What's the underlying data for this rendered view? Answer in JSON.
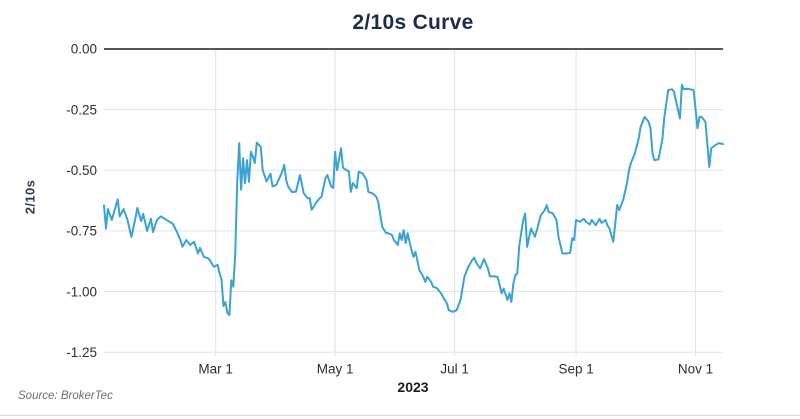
{
  "title": "2/10s Curve",
  "source": "Source: BrokerTec",
  "colors": {
    "line": "#3ba2d6",
    "grid": "#e3e3e3",
    "zero_line": "#55585c",
    "title_text": "#1e2b49",
    "tick_text": "#2f2f2f",
    "source_text": "#6f6f6f",
    "bottom_rule": "#d9d9d9"
  },
  "chart_data": {
    "type": "line",
    "title": "2/10s Curve",
    "xlabel": "2023",
    "ylabel": "2/10s",
    "ylim": [
      -1.25,
      0
    ],
    "grid": true,
    "legend": "none",
    "y_ticks": [
      0,
      -0.25,
      -0.5,
      -0.75,
      -1.0,
      -1.25
    ],
    "y_tick_labels": [
      "0.00",
      "-0.25",
      "-0.50",
      "-0.75",
      "-1.00",
      "-1.25"
    ],
    "x_domain_days_of_year": [
      2,
      318
    ],
    "x_ticks_days_of_year": [
      59,
      120,
      181,
      243,
      304
    ],
    "x_tick_labels": [
      "Mar 1",
      "May 1",
      "Jul 1",
      "Sep 1",
      "Nov 1"
    ],
    "series": [
      {
        "name": "2/10s",
        "x_unit": "day of year 2023",
        "y_unit": "percentage points",
        "points": [
          [
            2,
            -0.645
          ],
          [
            3,
            -0.74
          ],
          [
            4,
            -0.66
          ],
          [
            6,
            -0.705
          ],
          [
            9,
            -0.62
          ],
          [
            10,
            -0.69
          ],
          [
            12,
            -0.66
          ],
          [
            14,
            -0.705
          ],
          [
            16,
            -0.775
          ],
          [
            18,
            -0.7
          ],
          [
            19,
            -0.655
          ],
          [
            21,
            -0.71
          ],
          [
            22,
            -0.68
          ],
          [
            24,
            -0.75
          ],
          [
            26,
            -0.7
          ],
          [
            27,
            -0.755
          ],
          [
            29,
            -0.705
          ],
          [
            31,
            -0.69
          ],
          [
            33,
            -0.7
          ],
          [
            35,
            -0.71
          ],
          [
            37,
            -0.72
          ],
          [
            39,
            -0.75
          ],
          [
            41,
            -0.788
          ],
          [
            42,
            -0.815
          ],
          [
            44,
            -0.788
          ],
          [
            46,
            -0.808
          ],
          [
            48,
            -0.795
          ],
          [
            50,
            -0.843
          ],
          [
            51,
            -0.82
          ],
          [
            53,
            -0.857
          ],
          [
            55,
            -0.862
          ],
          [
            56,
            -0.87
          ],
          [
            58,
            -0.898
          ],
          [
            60,
            -0.89
          ],
          [
            61,
            -0.925
          ],
          [
            62,
            -0.95
          ],
          [
            63,
            -1.06
          ],
          [
            64,
            -1.043
          ],
          [
            65,
            -1.089
          ],
          [
            66,
            -1.097
          ],
          [
            67,
            -0.953
          ],
          [
            68,
            -0.98
          ],
          [
            69,
            -0.85
          ],
          [
            70,
            -0.55
          ],
          [
            71,
            -0.388
          ],
          [
            72,
            -0.58
          ],
          [
            73,
            -0.45
          ],
          [
            74,
            -0.553
          ],
          [
            75,
            -0.458
          ],
          [
            76,
            -0.548
          ],
          [
            77,
            -0.424
          ],
          [
            78,
            -0.444
          ],
          [
            79,
            -0.47
          ],
          [
            80,
            -0.386
          ],
          [
            82,
            -0.403
          ],
          [
            83,
            -0.5
          ],
          [
            85,
            -0.546
          ],
          [
            87,
            -0.514
          ],
          [
            88,
            -0.567
          ],
          [
            90,
            -0.56
          ],
          [
            93,
            -0.505
          ],
          [
            94,
            -0.478
          ],
          [
            95,
            -0.54
          ],
          [
            96,
            -0.567
          ],
          [
            98,
            -0.59
          ],
          [
            100,
            -0.588
          ],
          [
            102,
            -0.52
          ],
          [
            104,
            -0.595
          ],
          [
            106,
            -0.616
          ],
          [
            107,
            -0.614
          ],
          [
            108,
            -0.663
          ],
          [
            110,
            -0.637
          ],
          [
            112,
            -0.616
          ],
          [
            113,
            -0.61
          ],
          [
            115,
            -0.533
          ],
          [
            116,
            -0.52
          ],
          [
            118,
            -0.567
          ],
          [
            119,
            -0.573
          ],
          [
            120,
            -0.424
          ],
          [
            121,
            -0.5
          ],
          [
            123,
            -0.41
          ],
          [
            124,
            -0.49
          ],
          [
            127,
            -0.505
          ],
          [
            128,
            -0.589
          ],
          [
            129,
            -0.553
          ],
          [
            131,
            -0.574
          ],
          [
            132,
            -0.506
          ],
          [
            134,
            -0.513
          ],
          [
            136,
            -0.54
          ],
          [
            137,
            -0.589
          ],
          [
            139,
            -0.595
          ],
          [
            141,
            -0.609
          ],
          [
            142,
            -0.63
          ],
          [
            144,
            -0.733
          ],
          [
            146,
            -0.759
          ],
          [
            147,
            -0.759
          ],
          [
            149,
            -0.767
          ],
          [
            150,
            -0.788
          ],
          [
            152,
            -0.808
          ],
          [
            153,
            -0.76
          ],
          [
            154,
            -0.788
          ],
          [
            155,
            -0.747
          ],
          [
            156,
            -0.8
          ],
          [
            157,
            -0.76
          ],
          [
            159,
            -0.829
          ],
          [
            160,
            -0.857
          ],
          [
            161,
            -0.836
          ],
          [
            163,
            -0.912
          ],
          [
            165,
            -0.939
          ],
          [
            166,
            -0.96
          ],
          [
            167,
            -0.939
          ],
          [
            169,
            -0.96
          ],
          [
            170,
            -0.98
          ],
          [
            172,
            -0.986
          ],
          [
            174,
            -1.007
          ],
          [
            176,
            -1.035
          ],
          [
            177,
            -1.048
          ],
          [
            178,
            -1.077
          ],
          [
            180,
            -1.084
          ],
          [
            182,
            -1.077
          ],
          [
            183,
            -1.056
          ],
          [
            184,
            -1.035
          ],
          [
            186,
            -0.939
          ],
          [
            188,
            -0.898
          ],
          [
            190,
            -0.87
          ],
          [
            191,
            -0.86
          ],
          [
            192,
            -0.88
          ],
          [
            194,
            -0.905
          ],
          [
            196,
            -0.866
          ],
          [
            198,
            -0.905
          ],
          [
            199,
            -0.937
          ],
          [
            201,
            -0.937
          ],
          [
            203,
            -0.94
          ],
          [
            205,
            -1.007
          ],
          [
            206,
            -0.988
          ],
          [
            208,
            -1.035
          ],
          [
            209,
            -1.007
          ],
          [
            210,
            -1.043
          ],
          [
            211,
            -0.966
          ],
          [
            212,
            -0.932
          ],
          [
            213,
            -0.925
          ],
          [
            214,
            -0.81
          ],
          [
            216,
            -0.705
          ],
          [
            217,
            -0.678
          ],
          [
            218,
            -0.816
          ],
          [
            220,
            -0.74
          ],
          [
            222,
            -0.774
          ],
          [
            223,
            -0.747
          ],
          [
            225,
            -0.685
          ],
          [
            227,
            -0.664
          ],
          [
            228,
            -0.644
          ],
          [
            229,
            -0.672
          ],
          [
            231,
            -0.677
          ],
          [
            233,
            -0.705
          ],
          [
            234,
            -0.774
          ],
          [
            236,
            -0.843
          ],
          [
            238,
            -0.843
          ],
          [
            240,
            -0.84
          ],
          [
            241,
            -0.78
          ],
          [
            242,
            -0.788
          ],
          [
            243,
            -0.705
          ],
          [
            245,
            -0.712
          ],
          [
            247,
            -0.7
          ],
          [
            248,
            -0.712
          ],
          [
            250,
            -0.723
          ],
          [
            251,
            -0.705
          ],
          [
            253,
            -0.727
          ],
          [
            255,
            -0.7
          ],
          [
            256,
            -0.717
          ],
          [
            258,
            -0.705
          ],
          [
            259,
            -0.727
          ],
          [
            260,
            -0.74
          ],
          [
            262,
            -0.795
          ],
          [
            264,
            -0.643
          ],
          [
            265,
            -0.664
          ],
          [
            267,
            -0.623
          ],
          [
            269,
            -0.553
          ],
          [
            270,
            -0.5
          ],
          [
            271,
            -0.47
          ],
          [
            273,
            -0.43
          ],
          [
            275,
            -0.367
          ],
          [
            276,
            -0.32
          ],
          [
            278,
            -0.28
          ],
          [
            280,
            -0.3
          ],
          [
            281,
            -0.327
          ],
          [
            282,
            -0.43
          ],
          [
            283,
            -0.458
          ],
          [
            285,
            -0.455
          ],
          [
            287,
            -0.375
          ],
          [
            288,
            -0.286
          ],
          [
            290,
            -0.169
          ],
          [
            292,
            -0.166
          ],
          [
            293,
            -0.176
          ],
          [
            295,
            -0.25
          ],
          [
            296,
            -0.286
          ],
          [
            297,
            -0.148
          ],
          [
            298,
            -0.166
          ],
          [
            300,
            -0.164
          ],
          [
            303,
            -0.169
          ],
          [
            305,
            -0.327
          ],
          [
            306,
            -0.28
          ],
          [
            307,
            -0.28
          ],
          [
            309,
            -0.3
          ],
          [
            311,
            -0.486
          ],
          [
            312,
            -0.41
          ],
          [
            314,
            -0.396
          ],
          [
            316,
            -0.388
          ],
          [
            318,
            -0.392
          ]
        ]
      }
    ]
  }
}
